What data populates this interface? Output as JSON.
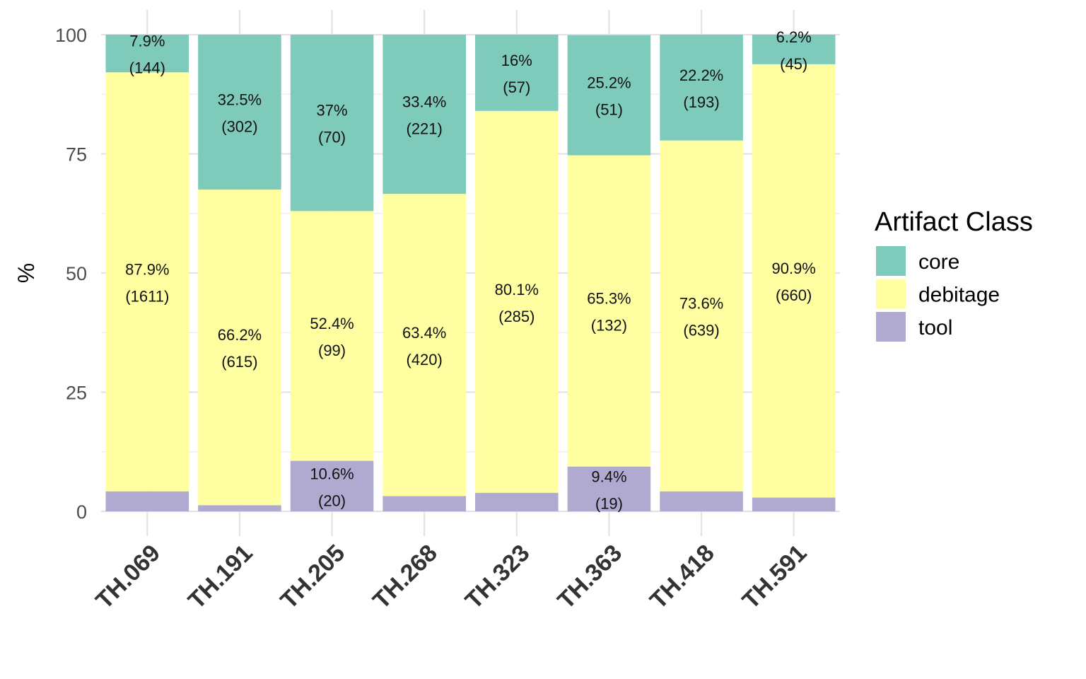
{
  "chart_data": {
    "type": "bar",
    "stacked": true,
    "categories": [
      "TH.069",
      "TH.191",
      "TH.205",
      "TH.268",
      "TH.323",
      "TH.363",
      "TH.418",
      "TH.591"
    ],
    "series": [
      {
        "name": "core",
        "color": "#7fcbbb",
        "values": [
          7.9,
          32.5,
          37.0,
          33.4,
          16.0,
          25.2,
          22.2,
          6.2
        ],
        "labels": [
          "7.9%",
          "32.5%",
          "37%",
          "33.4%",
          "16%",
          "25.2%",
          "22.2%",
          "6.2%"
        ],
        "counts": [
          "(144)",
          "(302)",
          "(70)",
          "(221)",
          "(57)",
          "(51)",
          "(193)",
          "(45)"
        ]
      },
      {
        "name": "debitage",
        "color": "#ffffa1",
        "values": [
          87.9,
          66.2,
          52.4,
          63.4,
          80.1,
          65.3,
          73.6,
          90.9
        ],
        "labels": [
          "87.9%",
          "66.2%",
          "52.4%",
          "63.4%",
          "80.1%",
          "65.3%",
          "73.6%",
          "90.9%"
        ],
        "counts": [
          "(1611)",
          "(615)",
          "(99)",
          "(420)",
          "(285)",
          "(132)",
          "(639)",
          "(660)"
        ]
      },
      {
        "name": "tool",
        "color": "#b1aad0",
        "values": [
          4.2,
          1.3,
          10.6,
          3.2,
          3.9,
          9.4,
          4.2,
          2.9
        ],
        "labels": [
          "",
          "",
          "10.6%",
          "",
          "",
          "9.4%",
          "",
          ""
        ],
        "counts": [
          "",
          "",
          "(20)",
          "",
          "",
          "(19)",
          "",
          ""
        ]
      }
    ],
    "ylabel": "%",
    "xlabel": "",
    "ylim": [
      0,
      100
    ],
    "yticks": [
      "0",
      "25",
      "50",
      "75",
      "100"
    ],
    "legend_title": "Artifact Class",
    "legend_position": "right",
    "grid": true
  }
}
